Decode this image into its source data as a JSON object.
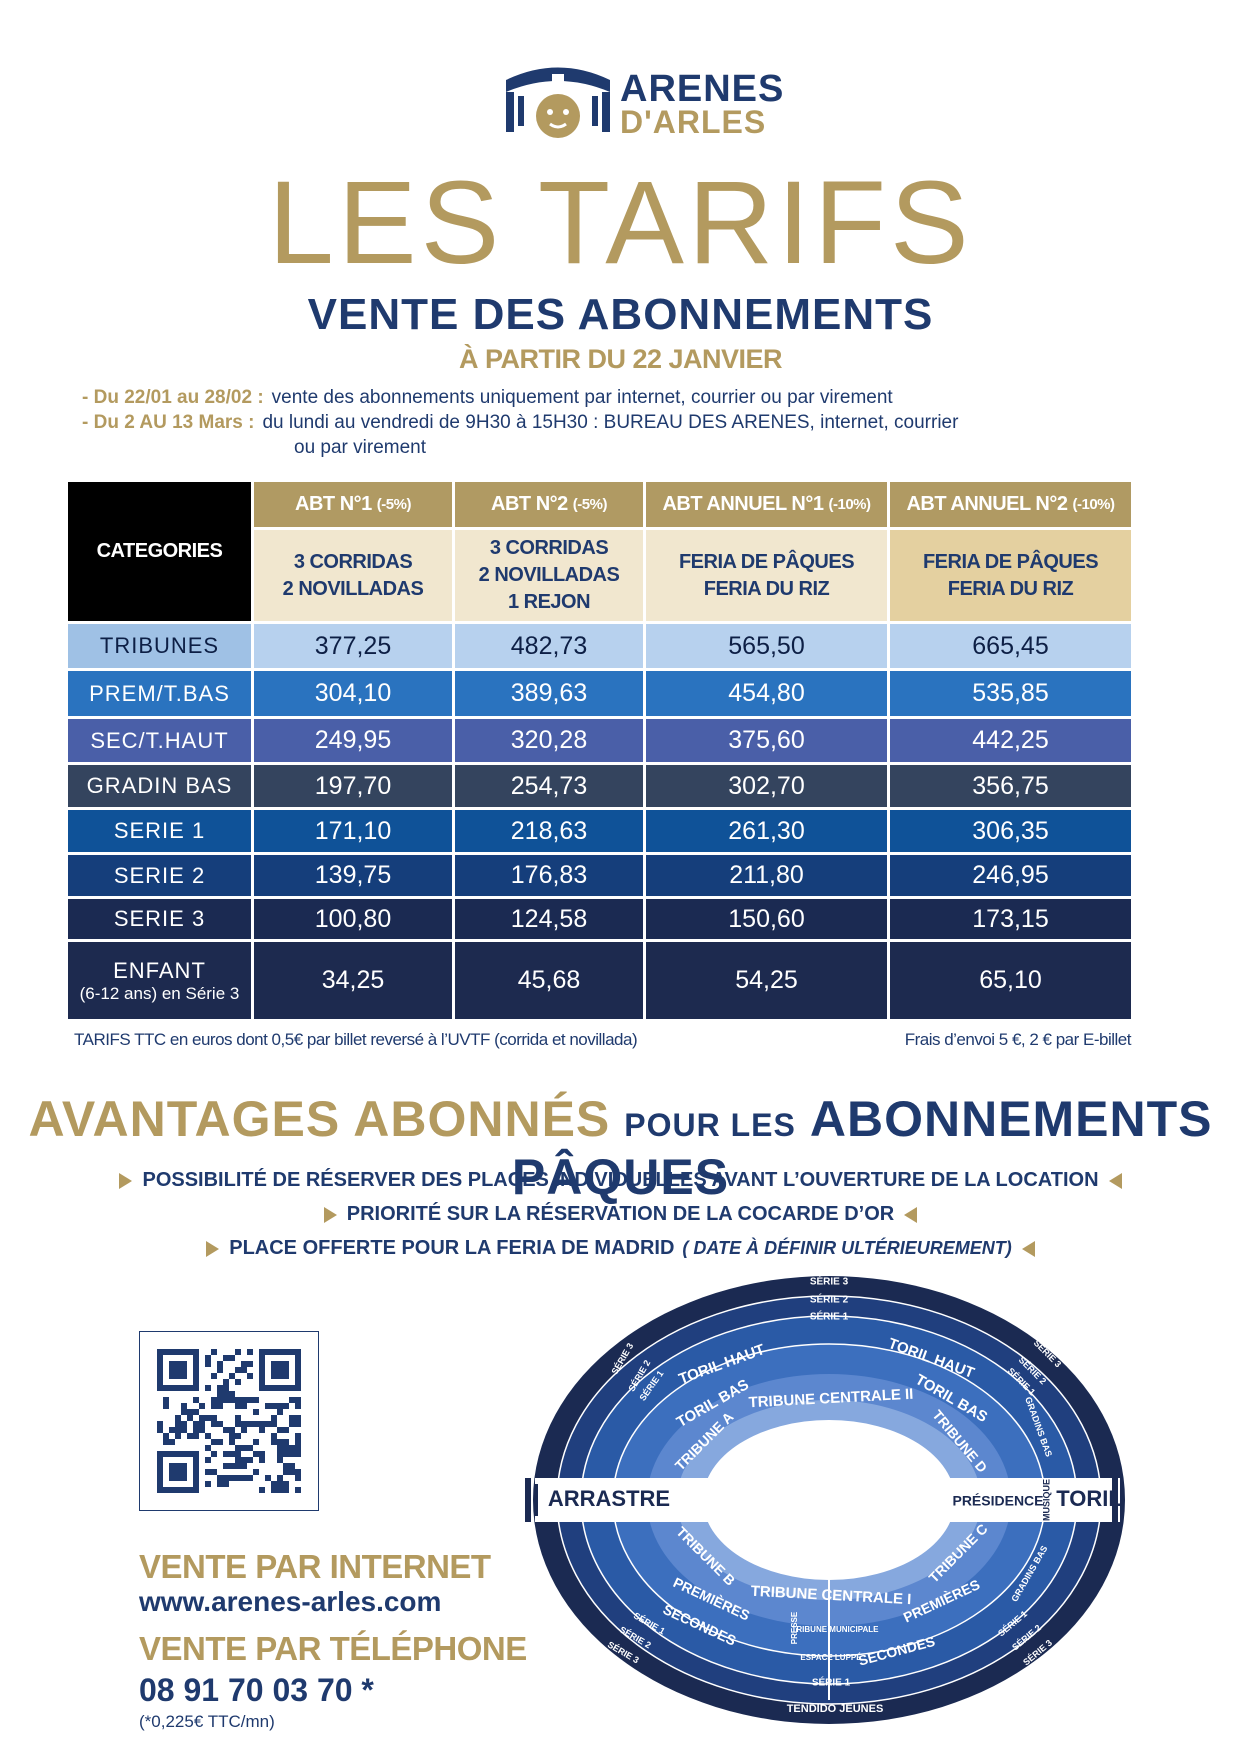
{
  "logo": {
    "line1": "ARENES",
    "line2": "D'ARLES"
  },
  "title": "LES TARIFS",
  "subtitle": "VENTE DES ABONNEMENTS",
  "start": "À PARTIR DU 22 JANVIER",
  "info": [
    {
      "label": "- Du 22/01 au 28/02 :",
      "lines": [
        "vente des abonnements uniquement par internet, courrier ou par virement"
      ]
    },
    {
      "label": "- Du 2 AU 13 Mars :",
      "lines": [
        "du lundi au vendredi de 9H30 à 15H30 : BUREAU DES ARENES, internet, courrier",
        "ou par virement"
      ]
    }
  ],
  "table": {
    "corner": "CATEGORIES",
    "columns": [
      {
        "name": "ABT N°1",
        "discount": "(-5%)",
        "content": [
          "3 CORRIDAS",
          "2 NOVILLADAS"
        ]
      },
      {
        "name": "ABT N°2",
        "discount": "(-5%)",
        "content": [
          "3 CORRIDAS",
          "2 NOVILLADAS",
          "1 REJON"
        ]
      },
      {
        "name": "ABT ANNUEL N°1",
        "discount": "(-10%)",
        "content": [
          "FERIA DE PÂQUES",
          "FERIA DU RIZ"
        ]
      },
      {
        "name": "ABT ANNUEL N°2",
        "discount": "(-10%)",
        "content": [
          "FERIA DE PÂQUES",
          "FERIA DU RIZ"
        ]
      }
    ],
    "rows": [
      {
        "category": "TRIBUNES",
        "prices": [
          "377,25",
          "482,73",
          "565,50",
          "665,45"
        ]
      },
      {
        "category": "PREM/T.BAS",
        "prices": [
          "304,10",
          "389,63",
          "454,80",
          "535,85"
        ]
      },
      {
        "category": "SEC/T.HAUT",
        "prices": [
          "249,95",
          "320,28",
          "375,60",
          "442,25"
        ]
      },
      {
        "category": "GRADIN BAS",
        "prices": [
          "197,70",
          "254,73",
          "302,70",
          "356,75"
        ]
      },
      {
        "category": "SERIE 1",
        "prices": [
          "171,10",
          "218,63",
          "261,30",
          "306,35"
        ]
      },
      {
        "category": "SERIE 2",
        "prices": [
          "139,75",
          "176,83",
          "211,80",
          "246,95"
        ]
      },
      {
        "category": "SERIE 3",
        "prices": [
          "100,80",
          "124,58",
          "150,60",
          "173,15"
        ]
      },
      {
        "category": "ENFANT",
        "note": "(6-12 ans) en Série 3",
        "prices": [
          "34,25",
          "45,68",
          "54,25",
          "65,10"
        ]
      }
    ],
    "footnote_left": "TARIFS TTC en euros dont 0,5€  par billet reversé à l’UVTF (corrida et novillada)",
    "footnote_right": "Frais d’envoi  5 €,  2 € par E-billet"
  },
  "advantages": {
    "heading": [
      "AVANTAGES ABONNÉS",
      "POUR LES",
      "ABONNEMENTS PÂQUES"
    ],
    "bullets": [
      {
        "text": "POSSIBILITÉ DE RÉSERVER DES PLACES INDIVIDUELLES AVANT L’OUVERTURE DE LA LOCATION"
      },
      {
        "text": "PRIORITÉ SUR LA RÉSERVATION DE LA COCARDE D’OR"
      },
      {
        "text": "PLACE OFFERTE POUR LA FERIA DE MADRID",
        "note": "( DATE À DÉFINIR ULTÉRIEUREMENT)"
      }
    ]
  },
  "contact": {
    "internet_label": "VENTE PAR INTERNET",
    "url": "www.arenes-arles.com",
    "phone_label": "VENTE PAR TÉLÉPHONE",
    "phone": "08 91 70 03 70 *",
    "phone_note": "(*0,225€ TTC/mn)"
  },
  "map": {
    "labels": [
      "SÉRIE 3",
      "SÉRIE 2",
      "SÉRIE 1",
      "TORIL HAUT",
      "TORIL HAUT",
      "TORIL BAS",
      "TORIL BAS",
      "TRIBUNE CENTRALE II",
      "TRIBUNE A",
      "TRIBUNE D",
      "ARRASTRE",
      "PRÉSIDENCE",
      "MUSIQUE",
      "TORIL",
      "TRIBUNE B",
      "TRIBUNE C",
      "PREMIÈRES",
      "PREMIÈRES",
      "TRIBUNE CENTRALE I",
      "SECONDES",
      "SECONDES",
      "PRESSE",
      "TRIBUNE MUNICIPALE",
      "ESPACE LUPPÉ",
      "SÉRIE 1",
      "TENDIDO JEUNES",
      "GRADINS BAS",
      "GRADINS BAS",
      "SÉRIE 3",
      "SÉRIE 2",
      "SÉRIE 1",
      "SÉRIE 3",
      "SÉRIE 2",
      "SÉRIE 1",
      "SÉRIE 1",
      "SÉRIE 2",
      "SÉRIE 3",
      "SÉRIE 1",
      "SÉRIE 2",
      "SÉRIE 3"
    ]
  }
}
